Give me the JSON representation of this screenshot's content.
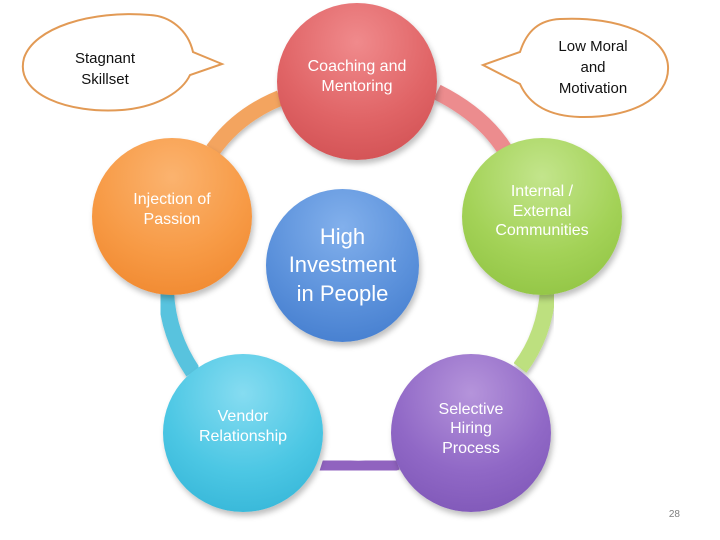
{
  "center": {
    "label": "High\nInvestment\nin People",
    "color": "#4f86d4"
  },
  "nodes": [
    {
      "label": "Coaching and\nMentoring",
      "color": "#dc5a5d"
    },
    {
      "label": "Internal /\nExternal\nCommunities",
      "color": "#9ccc4c"
    },
    {
      "label": "Selective\nHiring\nProcess",
      "color": "#8a5ec0"
    },
    {
      "label": "Vendor\nRelationship",
      "color": "#3cbfdf"
    },
    {
      "label": "Injection of\nPassion",
      "color": "#f6953c"
    }
  ],
  "callouts": [
    {
      "label": "Stagnant\nSkillset"
    },
    {
      "label": "Low Moral\nand\nMotivation"
    }
  ],
  "bubble_color": "#e29a55",
  "page_number": "28"
}
